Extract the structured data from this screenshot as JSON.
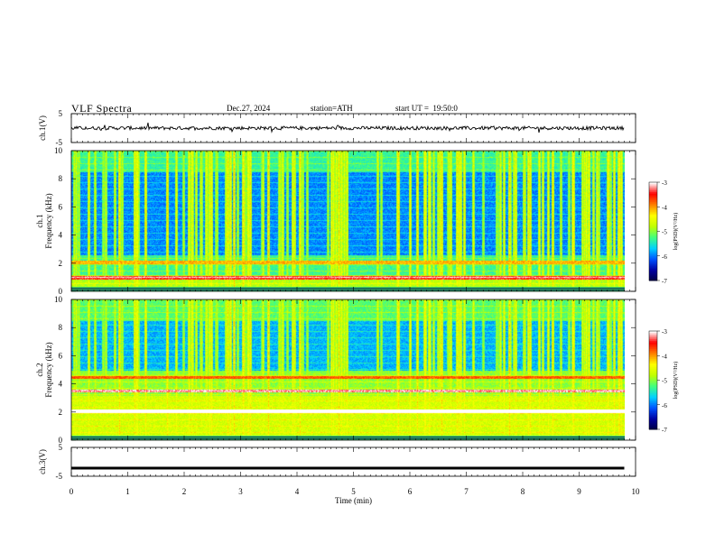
{
  "header": {
    "title": "VLF Spectra",
    "date": "Dec.27, 2024",
    "station": "station=ATH",
    "start": "start UT =  19:50:0"
  },
  "colors": {
    "background": "#ffffff",
    "axes": "#000000",
    "colormap": [
      "#000040",
      "#0000a0",
      "#0050ff",
      "#00d0ff",
      "#40ff80",
      "#c0ff00",
      "#ffff00",
      "#ff8000",
      "#ff0000",
      "#ffffff"
    ]
  },
  "chart_data": [
    {
      "type": "line",
      "panel": "ch1-waveform",
      "ylabel": "ch.1(V)",
      "ylim": [
        -5,
        5
      ],
      "yticks": [
        "5",
        "-5"
      ],
      "xlim": [
        0,
        10
      ],
      "trace_level_v": 0.0,
      "trace_span_min": [
        0,
        9.8
      ]
    },
    {
      "type": "heatmap",
      "panel": "ch1-spectrogram",
      "ylabel": "ch.1\nFrequency (kHz)",
      "ylim": [
        0,
        10
      ],
      "yticks": [
        "0",
        "2",
        "4",
        "6",
        "8",
        "10"
      ],
      "xlim": [
        0,
        10
      ],
      "data_span_min": [
        0,
        9.8
      ],
      "colorbar": {
        "label": "log(PSD)(V²/Hz)",
        "range": [
          -7,
          -3
        ],
        "ticks": [
          "-3",
          "-4",
          "-5",
          "-6",
          "-7"
        ]
      }
    },
    {
      "type": "heatmap",
      "panel": "ch2-spectrogram",
      "ylabel": "ch.2\nFrequency (kHz)",
      "ylim": [
        0,
        10
      ],
      "yticks": [
        "0",
        "2",
        "4",
        "6",
        "8",
        "10"
      ],
      "xlim": [
        0,
        10
      ],
      "data_span_min": [
        0,
        9.8
      ],
      "colorbar": {
        "label": "log(PSD)(V²/Hz)",
        "range": [
          -7,
          -3
        ],
        "ticks": [
          "-3",
          "-4",
          "-5",
          "-6",
          "-7"
        ]
      }
    },
    {
      "type": "line",
      "panel": "ch3-waveform",
      "ylabel": "ch.3(V)",
      "ylim": [
        -5,
        5
      ],
      "yticks": [
        "5",
        "-5"
      ],
      "xlim": [
        0,
        10
      ],
      "trace_level_v": -2.2,
      "trace_span_min": [
        0,
        9.8
      ]
    }
  ],
  "x_axis": {
    "label": "Time (min)",
    "ticks": [
      "0",
      "1",
      "2",
      "3",
      "4",
      "5",
      "6",
      "7",
      "8",
      "9",
      "10"
    ]
  }
}
